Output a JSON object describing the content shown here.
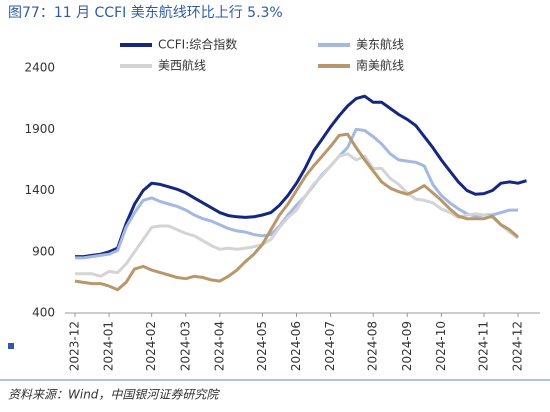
{
  "chart_data": {
    "type": "line",
    "title": "图77：11 月 CCFI 美东航线环比上行 5.3%",
    "source": "资料来源：Wind，中国银河证券研究院",
    "categories": [
      "2023-12",
      null,
      null,
      null,
      "2024-01",
      null,
      null,
      null,
      null,
      "2024-02",
      null,
      null,
      null,
      "2024-03",
      null,
      null,
      null,
      "2024-04",
      null,
      null,
      null,
      null,
      "2024-05",
      null,
      null,
      null,
      "2024-06",
      null,
      null,
      null,
      "2024-07",
      null,
      null,
      null,
      null,
      "2024-08",
      null,
      null,
      null,
      "2024-09",
      null,
      null,
      null,
      "2024-10",
      null,
      null,
      null,
      null,
      "2024-11",
      null,
      null,
      null,
      "2024-12",
      null
    ],
    "series": [
      {
        "name": "CCFI:综合指数",
        "color": "#15277f",
        "width": 3,
        "values": [
          860,
          860,
          870,
          880,
          900,
          930,
          1130,
          1290,
          1400,
          1460,
          1450,
          1430,
          1410,
          1380,
          1340,
          1300,
          1260,
          1220,
          1195,
          1185,
          1180,
          1185,
          1200,
          1220,
          1280,
          1360,
          1460,
          1580,
          1720,
          1820,
          1920,
          2010,
          2090,
          2150,
          2170,
          2120,
          2120,
          2070,
          2020,
          1980,
          1930,
          1840,
          1750,
          1650,
          1560,
          1470,
          1400,
          1370,
          1375,
          1400,
          1460,
          1470,
          1460,
          1480
        ]
      },
      {
        "name": "美东航线",
        "color": "#a3b9e2",
        "width": 3,
        "values": [
          850,
          850,
          860,
          870,
          880,
          910,
          1100,
          1220,
          1320,
          1340,
          1310,
          1290,
          1270,
          1240,
          1200,
          1170,
          1150,
          1120,
          1090,
          1070,
          1060,
          1040,
          1030,
          1040,
          1110,
          1200,
          1280,
          1350,
          1440,
          1530,
          1600,
          1680,
          1750,
          1900,
          1890,
          1840,
          1780,
          1700,
          1650,
          1640,
          1630,
          1600,
          1450,
          1360,
          1300,
          1250,
          1210,
          1190,
          1200,
          1200,
          1220,
          1240,
          1240,
          null
        ]
      },
      {
        "name": "美西航线",
        "color": "#d4d4d4",
        "width": 3,
        "values": [
          720,
          720,
          720,
          700,
          740,
          730,
          800,
          900,
          1000,
          1100,
          1110,
          1110,
          1080,
          1050,
          1030,
          990,
          950,
          920,
          930,
          920,
          930,
          940,
          960,
          1000,
          1100,
          1180,
          1240,
          1350,
          1450,
          1520,
          1600,
          1680,
          1700,
          1650,
          1680,
          1580,
          1580,
          1500,
          1450,
          1380,
          1330,
          1320,
          1300,
          1250,
          1220,
          1180,
          1200,
          1210,
          1200,
          1180,
          1120,
          1060,
          1010,
          null
        ]
      },
      {
        "name": "南美航线",
        "color": "#b9976b",
        "width": 3,
        "values": [
          660,
          650,
          640,
          640,
          620,
          590,
          650,
          760,
          780,
          750,
          730,
          710,
          690,
          680,
          700,
          690,
          670,
          660,
          700,
          750,
          820,
          880,
          960,
          1080,
          1200,
          1290,
          1400,
          1510,
          1600,
          1680,
          1760,
          1850,
          1860,
          1750,
          1650,
          1560,
          1470,
          1420,
          1390,
          1370,
          1400,
          1440,
          1380,
          1320,
          1250,
          1190,
          1170,
          1170,
          1170,
          1190,
          1120,
          1080,
          1020,
          null
        ]
      }
    ],
    "ylim": [
      400,
      2400
    ],
    "yticks": [
      400,
      900,
      1400,
      1900,
      2400
    ]
  }
}
